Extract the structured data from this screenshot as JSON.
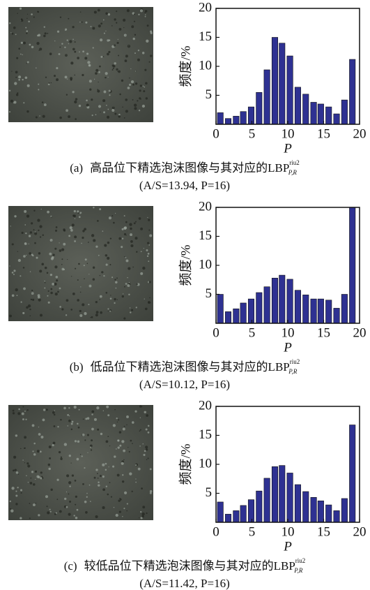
{
  "chart_data": [
    {
      "type": "bar",
      "color": "#2e3192",
      "x": [
        0.6,
        1.7,
        2.8,
        3.8,
        4.9,
        6.0,
        7.1,
        8.2,
        9.2,
        10.3,
        11.4,
        12.5,
        13.6,
        14.6,
        15.7,
        16.8,
        17.9,
        19.0
      ],
      "values": [
        2.0,
        1.0,
        1.4,
        2.2,
        3.0,
        5.5,
        9.4,
        15.0,
        14.0,
        11.8,
        6.4,
        5.2,
        3.8,
        3.5,
        3.0,
        1.8,
        4.2,
        11.2
      ],
      "xlim": [
        0,
        20
      ],
      "ylim": [
        0,
        20
      ],
      "xticks": [
        0,
        5,
        10,
        15,
        20
      ],
      "yticks": [
        5,
        10,
        15,
        20
      ],
      "xlabel": "P",
      "ylabel": "频度/%",
      "caption": {
        "label": "(a)",
        "text": "高品位下精选泡沫图像与其对应的LBP",
        "sup": "riu2",
        "sub": "P,R",
        "stats": "(A/S=13.94, P=16)"
      }
    },
    {
      "type": "bar",
      "color": "#2e3192",
      "x": [
        0.6,
        1.7,
        2.8,
        3.8,
        4.9,
        6.0,
        7.1,
        8.2,
        9.2,
        10.3,
        11.4,
        12.5,
        13.6,
        14.6,
        15.7,
        16.8,
        17.9,
        19.0
      ],
      "values": [
        5.0,
        2.0,
        2.5,
        3.5,
        4.2,
        5.3,
        6.3,
        7.8,
        8.3,
        7.6,
        5.7,
        4.9,
        4.2,
        4.2,
        4.0,
        2.6,
        5.0,
        20.0
      ],
      "xlim": [
        0,
        20
      ],
      "ylim": [
        0,
        20
      ],
      "xticks": [
        0,
        5,
        10,
        15,
        20
      ],
      "yticks": [
        5,
        10,
        15,
        20
      ],
      "xlabel": "P",
      "ylabel": "频度/%",
      "caption": {
        "label": "(b)",
        "text": "低品位下精选泡沫图像与其对应的LBP",
        "sup": "riu2",
        "sub": "P,R",
        "stats": "(A/S=10.12, P=16)"
      }
    },
    {
      "type": "bar",
      "color": "#2e3192",
      "x": [
        0.6,
        1.7,
        2.8,
        3.8,
        4.9,
        6.0,
        7.1,
        8.2,
        9.2,
        10.3,
        11.4,
        12.5,
        13.6,
        14.6,
        15.7,
        16.8,
        17.9,
        19.0
      ],
      "values": [
        3.5,
        1.4,
        2.0,
        2.9,
        3.9,
        5.4,
        7.6,
        9.6,
        9.8,
        8.5,
        6.5,
        5.3,
        4.3,
        3.7,
        3.0,
        2.0,
        4.1,
        16.8
      ],
      "xlim": [
        0,
        20
      ],
      "ylim": [
        0,
        20
      ],
      "xticks": [
        0,
        5,
        10,
        15,
        20
      ],
      "yticks": [
        5,
        10,
        15,
        20
      ],
      "xlabel": "P",
      "ylabel": "频度/%",
      "caption": {
        "label": "(c)",
        "text": "较低品位下精选泡沫图像与其对应的LBP",
        "sup": "riu2",
        "sub": "P,R",
        "stats": "(A/S=11.42, P=16)"
      }
    }
  ]
}
